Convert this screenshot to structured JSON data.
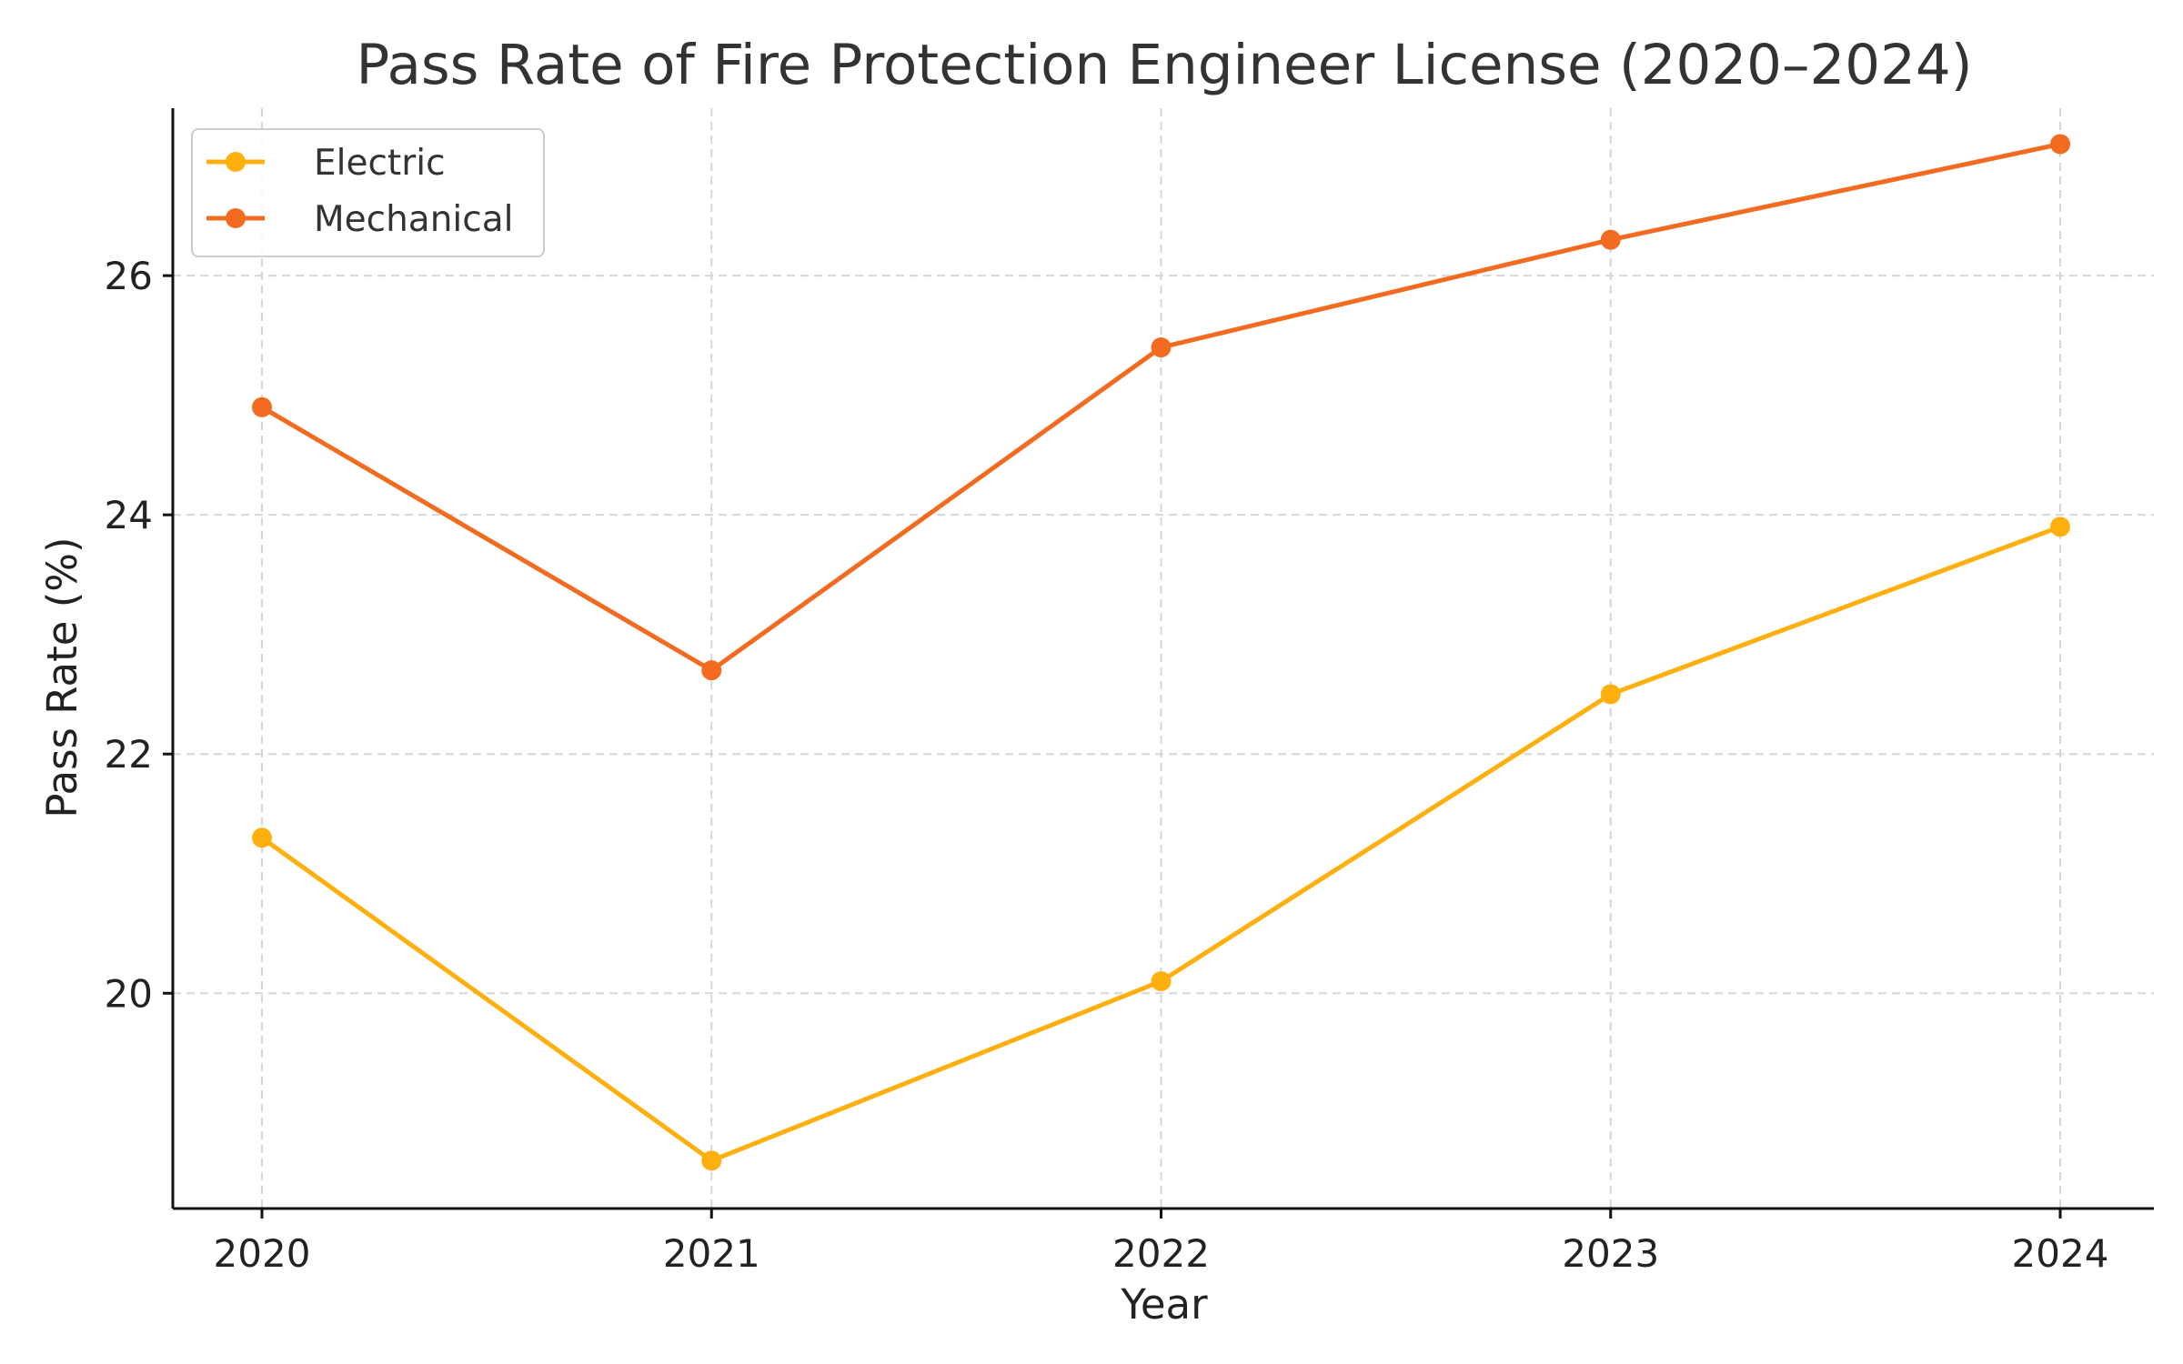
{
  "chart_data": {
    "type": "line",
    "title": "Pass Rate of Fire Protection Engineer License (2020–2024)",
    "xlabel": "Year",
    "ylabel": "Pass Rate (%)",
    "categories": [
      "2020",
      "2021",
      "2022",
      "2023",
      "2024"
    ],
    "ylim": [
      18.2,
      27.4
    ],
    "yticks": [
      20,
      22,
      24,
      26
    ],
    "grid": true,
    "legend_position": "top-left",
    "series": [
      {
        "name": "Electric",
        "color": "#FFB00F",
        "marker": "circle",
        "values": [
          21.3,
          18.6,
          20.1,
          22.5,
          23.9
        ]
      },
      {
        "name": "Mechanical",
        "color": "#F26B21",
        "marker": "circle",
        "values": [
          24.9,
          22.7,
          25.4,
          26.3,
          27.1
        ]
      }
    ]
  }
}
